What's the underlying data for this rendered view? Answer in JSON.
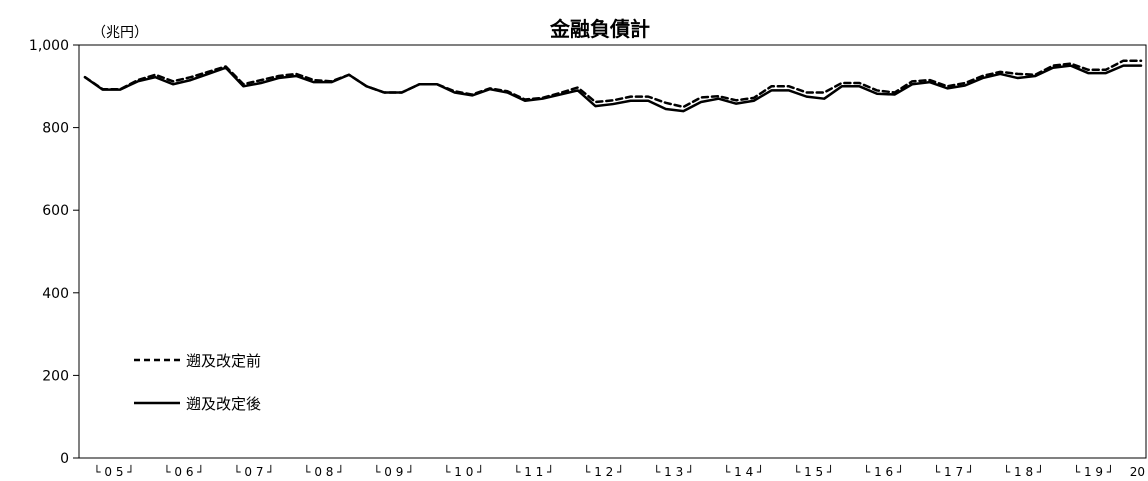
{
  "chart_data": {
    "type": "line",
    "title": "金融負債計",
    "ylabel": "（兆円）",
    "xlabel": "",
    "ylim": [
      0,
      1000
    ],
    "yticks": [
      "0",
      "200",
      "400",
      "600",
      "800",
      "1,000"
    ],
    "ytick_values": [
      0,
      200,
      400,
      600,
      800,
      1000
    ],
    "x_tick_labels": [
      "└ 0 5 ┘",
      "└ 0 6 ┘",
      "└ 0 7 ┘",
      "└ 0 8 ┘",
      "└ 0 9 ┘",
      "└ 1 0 ┘",
      "└ 1 1 ┘",
      "└ 1 2 ┘",
      "└ 1 3 ┘",
      "└ 1 4 ┘",
      "└ 1 5 ┘",
      "└ 1 6 ┘",
      "└ 1 7 ┘",
      "└ 1 8 ┘",
      "└ 1 9 ┘",
      "20"
    ],
    "legend_position": "bottom-left",
    "grid": false,
    "series": [
      {
        "name": "遡及改定前",
        "style": "dashed",
        "color": "#000000",
        "values": [
          922,
          893,
          893,
          915,
          928,
          912,
          922,
          935,
          948,
          905,
          915,
          925,
          930,
          915,
          912,
          928,
          900,
          885,
          885,
          905,
          905,
          888,
          880,
          895,
          888,
          868,
          872,
          884,
          897,
          862,
          866,
          875,
          875,
          860,
          850,
          873,
          876,
          866,
          872,
          900,
          900,
          885,
          885,
          908,
          908,
          890,
          885,
          912,
          915,
          900,
          908,
          925,
          935,
          930,
          928,
          950,
          955,
          940,
          940,
          962,
          962
        ]
      },
      {
        "name": "遡及改定後",
        "style": "solid",
        "color": "#000000",
        "values": [
          922,
          892,
          892,
          912,
          922,
          905,
          915,
          930,
          945,
          900,
          908,
          920,
          925,
          910,
          910,
          928,
          900,
          885,
          885,
          905,
          905,
          885,
          878,
          893,
          885,
          865,
          870,
          880,
          890,
          852,
          857,
          865,
          865,
          845,
          840,
          862,
          870,
          858,
          865,
          890,
          890,
          875,
          870,
          900,
          900,
          882,
          880,
          905,
          910,
          895,
          902,
          920,
          930,
          920,
          925,
          945,
          950,
          932,
          932,
          950,
          950
        ]
      }
    ]
  }
}
